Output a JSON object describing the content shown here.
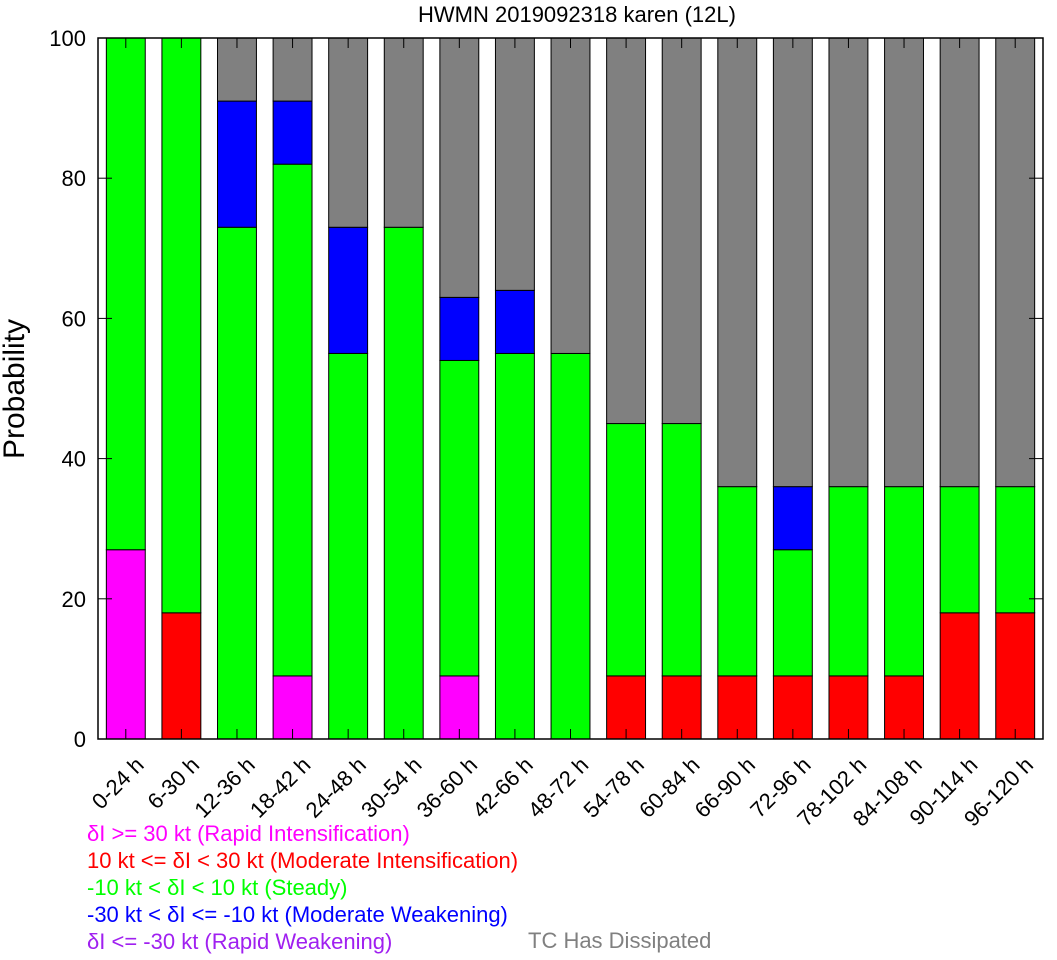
{
  "chart_data": {
    "type": "bar",
    "stacked": true,
    "title": "HWMN 2019092318 karen (12L)",
    "ylabel": "Probability",
    "xlabel": "",
    "ylim": [
      0,
      100
    ],
    "yticks": [
      0,
      20,
      40,
      60,
      80,
      100
    ],
    "categories": [
      "0-24 h",
      "6-30 h",
      "12-36 h",
      "18-42 h",
      "24-48 h",
      "30-54 h",
      "36-60 h",
      "42-66 h",
      "48-72 h",
      "54-78 h",
      "60-84 h",
      "66-90 h",
      "72-96 h",
      "78-102 h",
      "84-108 h",
      "90-114 h",
      "96-120 h"
    ],
    "series": [
      {
        "name": "δI >= 30 kt (Rapid Intensification)",
        "color": "#ff00ff",
        "values": [
          27,
          0,
          0,
          9,
          0,
          0,
          9,
          0,
          0,
          0,
          0,
          0,
          0,
          0,
          0,
          0,
          0
        ]
      },
      {
        "name": "10 kt <= δI < 30 kt (Moderate Intensification)",
        "color": "#ff0000",
        "values": [
          0,
          18,
          0,
          0,
          0,
          0,
          0,
          0,
          0,
          9,
          9,
          9,
          9,
          9,
          9,
          18,
          18
        ]
      },
      {
        "name": "-10 kt < δI < 10 kt (Steady)",
        "color": "#00ff00",
        "values": [
          73,
          82,
          73,
          73,
          55,
          73,
          45,
          55,
          55,
          36,
          36,
          27,
          18,
          27,
          27,
          18,
          18
        ]
      },
      {
        "name": "-30 kt < δI <= -10 kt (Moderate Weakening)",
        "color": "#0000ff",
        "values": [
          0,
          0,
          18,
          9,
          18,
          0,
          9,
          9,
          0,
          0,
          0,
          0,
          9,
          0,
          0,
          0,
          0
        ]
      },
      {
        "name": "δI <= -30 kt (Rapid Weakening)",
        "color": "#a020f0",
        "values": [
          0,
          0,
          0,
          0,
          0,
          0,
          0,
          0,
          0,
          0,
          0,
          0,
          0,
          0,
          0,
          0,
          0
        ]
      },
      {
        "name": "TC Has Dissipated",
        "color": "#808080",
        "values": [
          0,
          0,
          9,
          9,
          27,
          27,
          37,
          36,
          45,
          55,
          55,
          64,
          64,
          64,
          64,
          64,
          64
        ]
      }
    ],
    "legend_placement": "bottom-left",
    "grid": false
  }
}
